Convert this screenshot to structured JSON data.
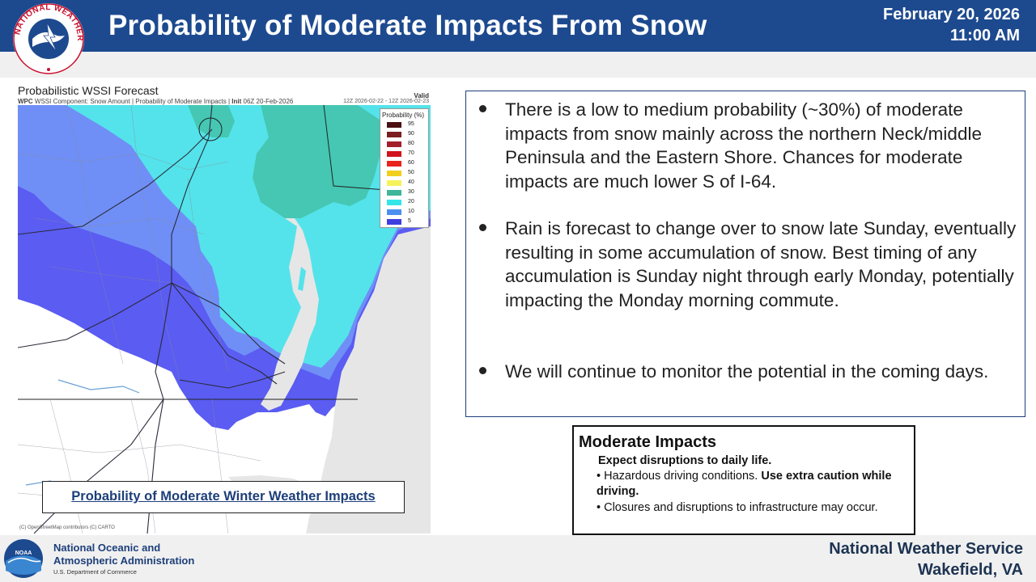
{
  "header": {
    "title": "Probability of Moderate Impacts From Snow",
    "date": "February 20, 2026",
    "time": "11:00 AM",
    "logo_text": "NATIONAL WEATHER SERVICE"
  },
  "map": {
    "title": "Probabilistic WSSI Forecast",
    "subtitle_prefix": "WPC",
    "subtitle": "WSSI Component: Snow Amount | Probability of Moderate Impacts |",
    "subtitle_init_label": "Init",
    "subtitle_init": "06Z 20-Feb-2026",
    "valid_label": "Valid",
    "valid_range": "12Z 2026-02-22 - 12Z 2026-02-23",
    "credit": "(C) OpenStreetMap contributors (C) CARTO",
    "caption": "Probability of Moderate Winter Weather Impacts",
    "legend": {
      "title": "Probability (%)",
      "items": [
        {
          "label": "95",
          "color": "#4a0f12"
        },
        {
          "label": "90",
          "color": "#7a1e22"
        },
        {
          "label": "80",
          "color": "#a3202b"
        },
        {
          "label": "70",
          "color": "#d0141c"
        },
        {
          "label": "60",
          "color": "#e8241c"
        },
        {
          "label": "50",
          "color": "#f2cf1f"
        },
        {
          "label": "40",
          "color": "#f6f35a"
        },
        {
          "label": "30",
          "color": "#3fb59a"
        },
        {
          "label": "20",
          "color": "#34e6ea"
        },
        {
          "label": "10",
          "color": "#4d8ff0"
        },
        {
          "label": "5",
          "color": "#3f3fe0"
        }
      ]
    },
    "colors": {
      "p5": "#5a5cf2",
      "p10": "#6f8ff6",
      "p20": "#54e3ea",
      "p30": "#45c7b3",
      "ocean": "#e6e6e6",
      "land": "#ffffff"
    }
  },
  "bullets": [
    "There is a low to medium probability (~30%) of  moderate impacts from snow mainly across the northern Neck/middle Peninsula and the Eastern Shore. Chances for moderate impacts are much lower S of I-64.",
    "Rain is forecast to change over to snow late Sunday, eventually resulting in some accumulation of snow. Best timing of any accumulation is Sunday night through early Monday, potentially impacting the Monday morning commute.",
    "We will continue to monitor the potential in the coming days."
  ],
  "impact_box": {
    "title": "Moderate Impacts",
    "subtitle": "Expect disruptions to daily life.",
    "item1_text": "Hazardous driving conditions.",
    "item1_bold": "Use extra caution while driving.",
    "item2_text": "Closures and disruptions to infrastructure may occur."
  },
  "footer": {
    "noaa_line1": "National Oceanic and",
    "noaa_line2": "Atmospheric Administration",
    "noaa_dept": "U.S. Department of Commerce",
    "noaa_logo_text": "NOAA",
    "nws_line1": "National Weather Service",
    "nws_line2": "Wakefield, VA"
  }
}
